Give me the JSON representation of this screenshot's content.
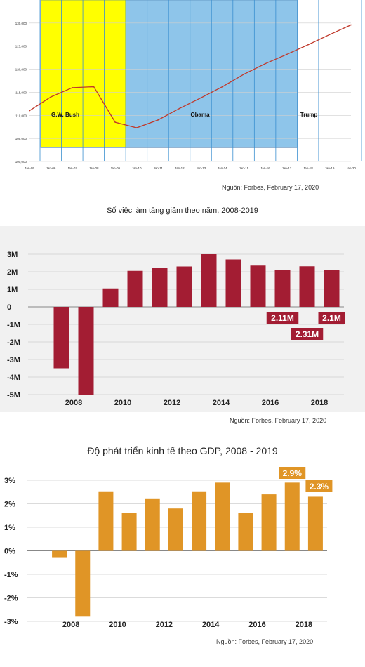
{
  "chart_data": [
    {
      "type": "line",
      "title": "",
      "xlabel": "",
      "ylabel": "",
      "ylim": [
        100000,
        135000
      ],
      "y_ticks": [
        "130,000",
        "125,000",
        "120,000",
        "115,000",
        "110,000",
        "105,000",
        "100,000"
      ],
      "x_ticks": [
        "Jan-05",
        "Jan-06",
        "Jan-07",
        "Jan-08",
        "Jan-09",
        "Jan-10",
        "Jan-11",
        "Jan-12",
        "Jan-13",
        "Jan-14",
        "Jan-15",
        "Jan-16",
        "Jan-17",
        "Jan-18",
        "Jan-19",
        "Jan-20"
      ],
      "regions": [
        {
          "label": "G.W. Bush",
          "from": "Jan-05",
          "to": "Jan-09",
          "color": "#ffff00"
        },
        {
          "label": "Obama",
          "from": "Jan-09",
          "to": "Jan-17",
          "color": "#8ec5ea"
        },
        {
          "label": "Trump",
          "from": "Jan-17",
          "to": "Jan-20",
          "color": "#ffffff"
        }
      ],
      "series": [
        {
          "name": "",
          "color": "#c0392b",
          "x": [
            "Jan-05",
            "Jan-06",
            "Jan-07",
            "Jan-08",
            "Jan-09",
            "Jan-10",
            "Jan-11",
            "Jan-12",
            "Jan-13",
            "Jan-14",
            "Jan-15",
            "Jan-16",
            "Jan-17",
            "Jan-18",
            "Jan-19",
            "Jan-20"
          ],
          "values": [
            111000,
            114000,
            116000,
            116200,
            108500,
            107300,
            109000,
            111500,
            113800,
            116200,
            118900,
            121200,
            123200,
            125300,
            127500,
            129600
          ]
        }
      ],
      "source": "Nguồn: Forbes, February 17, 2020",
      "grid": true
    },
    {
      "type": "bar",
      "title": "Số việc làm tăng giảm theo năm, 2008-2019",
      "xlabel": "",
      "ylabel": "",
      "ylim": [
        -5,
        3
      ],
      "y_ticks": [
        "3M",
        "2M",
        "1M",
        "0",
        "-1M",
        "-2M",
        "-3M",
        "-4M",
        "-5M"
      ],
      "x_ticks": [
        "2008",
        "2010",
        "2012",
        "2014",
        "2016",
        "2018"
      ],
      "categories": [
        "2008",
        "2009",
        "2010",
        "2011",
        "2012",
        "2013",
        "2014",
        "2015",
        "2016",
        "2017",
        "2018",
        "2019"
      ],
      "values": [
        -3.5,
        -5.0,
        1.05,
        2.05,
        2.2,
        2.3,
        3.0,
        2.7,
        2.35,
        2.11,
        2.31,
        2.1
      ],
      "color": "#a31d33",
      "annotations": [
        {
          "category": "2017",
          "text": "2.11M"
        },
        {
          "category": "2018",
          "text": "2.31M"
        },
        {
          "category": "2019",
          "text": "2.1M"
        }
      ],
      "source": "Nguồn: Forbes, February 17, 2020",
      "grid": true,
      "background": "#f1f1f1"
    },
    {
      "type": "bar",
      "title": "Độ phát triển kinh tế theo GDP, 2008 - 2019",
      "xlabel": "",
      "ylabel": "",
      "ylim": [
        -3,
        3
      ],
      "y_ticks": [
        "3%",
        "2%",
        "1%",
        "0%",
        "-1%",
        "-2%",
        "-3%"
      ],
      "x_ticks": [
        "2008",
        "2010",
        "2012",
        "2014",
        "2016",
        "2018"
      ],
      "categories": [
        "2008",
        "2009",
        "2010",
        "2011",
        "2012",
        "2013",
        "2014",
        "2015",
        "2016",
        "2017",
        "2018",
        "2019"
      ],
      "values": [
        -0.3,
        -2.8,
        2.5,
        1.6,
        2.2,
        1.8,
        2.5,
        2.9,
        1.6,
        2.4,
        2.9,
        2.3
      ],
      "color": "#e09526",
      "annotations": [
        {
          "category": "2018",
          "text": "2.9%"
        },
        {
          "category": "2019",
          "text": "2.3%"
        }
      ],
      "source": "Nguồn: Forbes, February 17, 2020",
      "grid": true
    }
  ]
}
